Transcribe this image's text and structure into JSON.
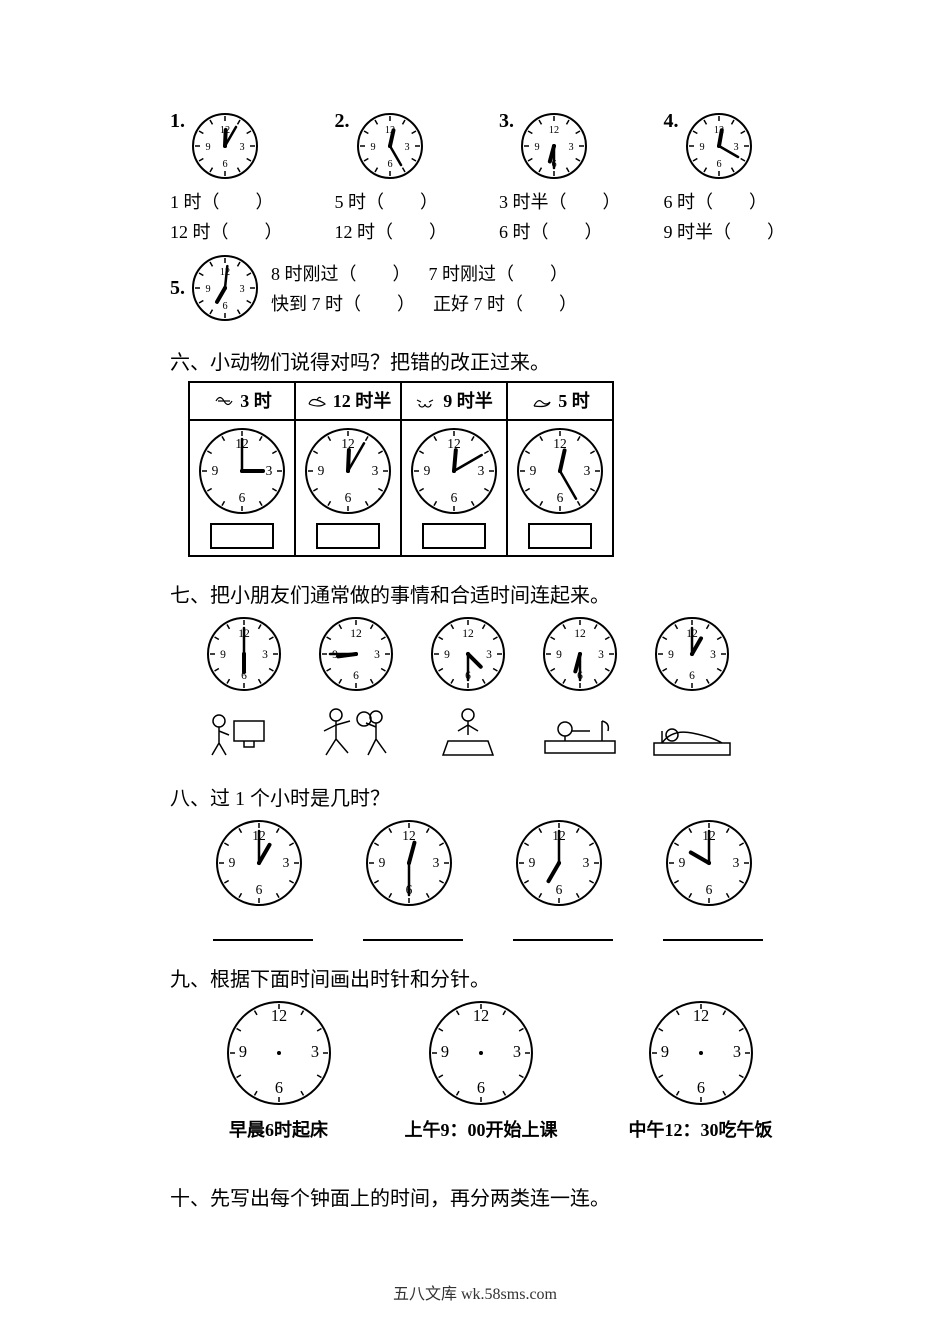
{
  "colors": {
    "fg": "#000000",
    "bg": "#ffffff"
  },
  "clock_style": {
    "radius": 30,
    "stroke": "#000000",
    "stroke_width": 2,
    "numeral_font_size": 10,
    "numerals": [
      "12",
      "3",
      "6",
      "9"
    ],
    "tick_count": 12
  },
  "section5": {
    "items": [
      {
        "n": "1.",
        "clock": {
          "hour": 12,
          "minute": 5
        },
        "lines": [
          "1 时（　　）",
          "12 时（　　）"
        ]
      },
      {
        "n": "2.",
        "clock": {
          "hour": 12,
          "minute": 25
        },
        "lines": [
          "5 时（　　）",
          "12 时（　　）"
        ]
      },
      {
        "n": "3.",
        "clock": {
          "hour": 6,
          "minute": 30
        },
        "lines": [
          "3 时半（　　）",
          "6 时（　　）"
        ]
      },
      {
        "n": "4.",
        "clock": {
          "hour": 12,
          "minute": 20
        },
        "lines": [
          "6 时（　　）",
          "9 时半（　　）"
        ]
      }
    ],
    "sub5": {
      "n": "5.",
      "clock": {
        "hour": 7,
        "minute": 0,
        "minute_draw": 1
      },
      "pairs": [
        [
          "8 时刚过（　　）",
          "7 时刚过（　　）"
        ],
        [
          "快到 7 时（　　）",
          "正好 7 时（　　）"
        ]
      ]
    }
  },
  "section6": {
    "heading": "六、小动物们说得对吗？把错的改正过来。",
    "cells": [
      {
        "label": "3 时",
        "clock": {
          "hour": 3,
          "minute": 0
        },
        "animal": "bee"
      },
      {
        "label": "12 时半",
        "clock": {
          "hour": 12,
          "minute": 5
        },
        "animal": "duck"
      },
      {
        "label": "9 时半",
        "clock": {
          "hour": 12,
          "minute": 10
        },
        "animal": "ant"
      },
      {
        "label": "5 时",
        "clock": {
          "hour": 12,
          "minute": 25
        },
        "animal": "swan"
      }
    ]
  },
  "section7": {
    "heading": "七、把小朋友们通常做的事情和合适时间连起来。",
    "clocks": [
      {
        "hour": 6,
        "minute": 0
      },
      {
        "hour": 8,
        "minute": 45
      },
      {
        "hour": 4,
        "minute": 30
      },
      {
        "hour": 6,
        "minute": 30
      },
      {
        "hour": 1,
        "minute": 0
      }
    ],
    "activities": [
      "computer",
      "play-ball",
      "eat",
      "wake-up",
      "sleep"
    ]
  },
  "section8": {
    "heading": "八、过 1 个小时是几时？",
    "clocks": [
      {
        "hour": 1,
        "minute": 0
      },
      {
        "hour": 12,
        "minute": 30
      },
      {
        "hour": 7,
        "minute": 0
      },
      {
        "hour": 10,
        "minute": 0
      }
    ]
  },
  "section9": {
    "heading": "九、根据下面时间画出时针和分针。",
    "items": [
      {
        "label": "早晨6时起床"
      },
      {
        "label": "上午9：00开始上课"
      },
      {
        "label": "中午12：30吃午饭"
      }
    ]
  },
  "section10": {
    "heading": "十、先写出每个钟面上的时间，再分两类连一连。"
  },
  "footer": "五八文库 wk.58sms.com"
}
